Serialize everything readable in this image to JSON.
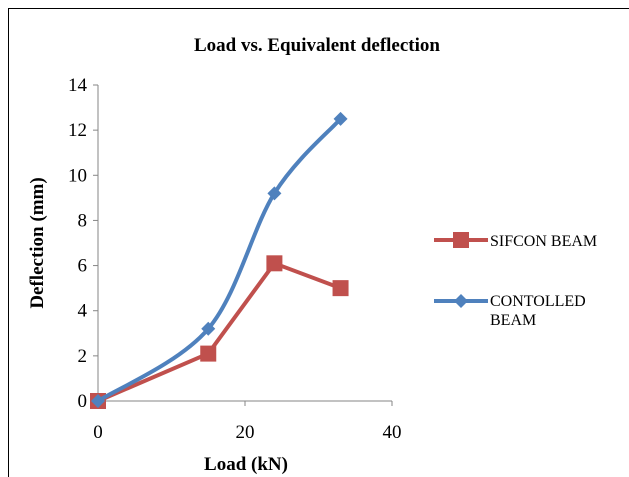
{
  "chart_data": {
    "type": "line",
    "title": "Load vs. Equivalent deflection",
    "xlabel": "Load (kN)",
    "ylabel": "Deflection (mm)",
    "xlim": [
      0,
      40
    ],
    "ylim": [
      0,
      14
    ],
    "x_ticks": [
      "0",
      "20",
      "40"
    ],
    "y_ticks": [
      "0",
      "2",
      "4",
      "6",
      "8",
      "10",
      "12",
      "14"
    ],
    "grid": false,
    "legend_position": "right",
    "series": [
      {
        "name": "SIFCON BEAM",
        "color": "#c0504d",
        "marker": "square",
        "smooth": false,
        "x": [
          0,
          15,
          24,
          33
        ],
        "y": [
          0,
          2.1,
          6.1,
          5.0
        ]
      },
      {
        "name": "CONTOLLED BEAM",
        "legend_lines": [
          "CONTOLLED",
          "BEAM"
        ],
        "color": "#4f81bd",
        "marker": "diamond",
        "smooth": true,
        "x": [
          0,
          15,
          24,
          33
        ],
        "y": [
          0,
          3.2,
          9.2,
          12.5
        ]
      }
    ]
  }
}
